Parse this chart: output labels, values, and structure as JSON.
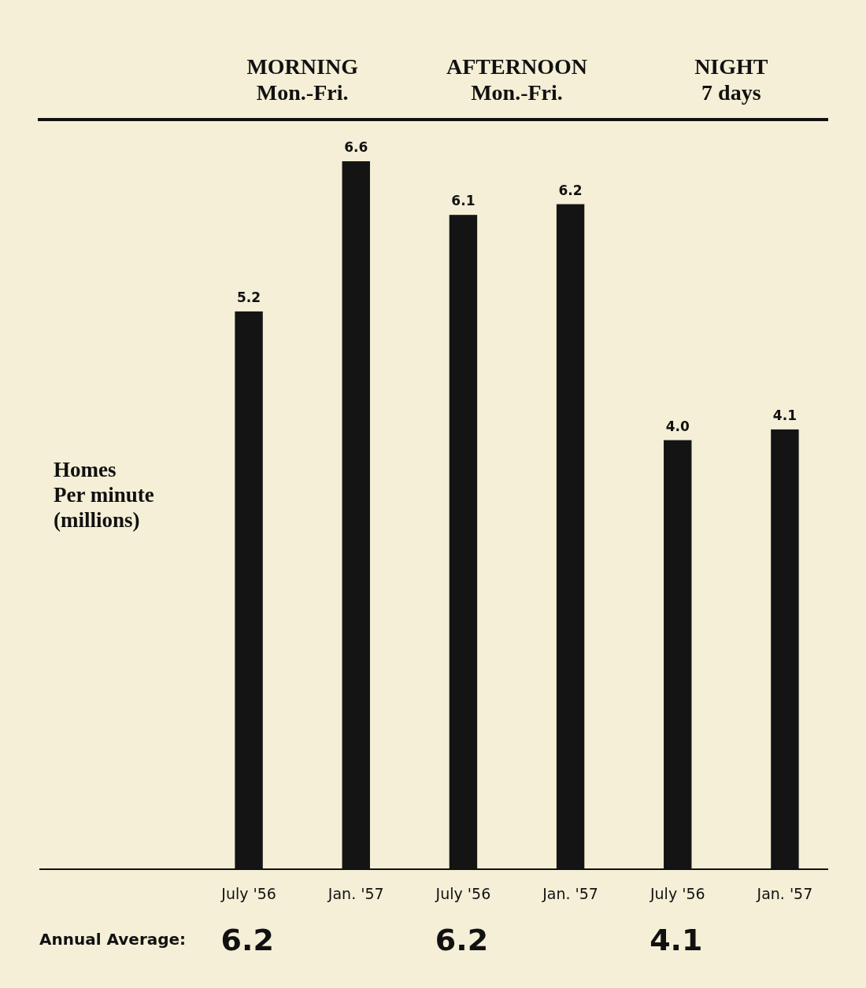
{
  "chart_data": {
    "type": "bar",
    "ylabel": "Homes\nPer minute\n(millions)",
    "categories": [
      "July '56",
      "Jan. '57",
      "July '56",
      "Jan. '57",
      "July '56",
      "Jan. '57"
    ],
    "values": [
      5.2,
      6.6,
      6.1,
      6.2,
      4.0,
      4.1
    ],
    "color": "#141414",
    "value_labels": [
      "5.2",
      "6.6",
      "6.1",
      "6.2",
      "4.0",
      "4.1"
    ],
    "annotations": [
      "MORNING\nMon.-Fri.",
      "AFTERNOON\nMon.-Fri.",
      "NIGHT\n7 days",
      "Annual Average:",
      "6.2",
      "6.2",
      "4.1"
    ]
  }
}
